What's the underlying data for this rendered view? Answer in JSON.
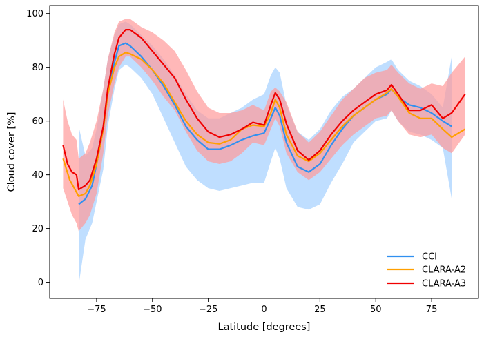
{
  "chart_data": {
    "type": "line",
    "title": "",
    "xlabel": "Latitude [degrees]",
    "ylabel": "Cloud cover [%]",
    "xlim": [
      -96,
      96
    ],
    "ylim": [
      -6,
      103
    ],
    "xticks": [
      -75,
      -50,
      -25,
      0,
      25,
      50,
      75
    ],
    "xtick_labels": [
      "−75",
      "−50",
      "−25",
      "0",
      "25",
      "50",
      "75"
    ],
    "yticks": [
      0,
      20,
      40,
      60,
      80,
      100
    ],
    "ytick_labels": [
      "0",
      "20",
      "40",
      "60",
      "80",
      "100"
    ],
    "grid": false,
    "legend_position": "lower-right",
    "series": [
      {
        "name": "CCI",
        "color": "#3090f0",
        "band_color": "#bfdeff",
        "x": [
          -83,
          -80,
          -77,
          -75,
          -72,
          -70,
          -67,
          -65,
          -62,
          -60,
          -55,
          -50,
          -45,
          -40,
          -35,
          -30,
          -25,
          -20,
          -15,
          -10,
          -5,
          0,
          3,
          5,
          7,
          10,
          15,
          20,
          25,
          30,
          35,
          40,
          45,
          50,
          55,
          57,
          60,
          65,
          70,
          75,
          80,
          84
        ],
        "values": [
          29,
          31,
          36,
          44,
          57,
          70,
          82,
          88,
          89,
          88,
          84,
          79,
          73,
          66,
          58,
          53,
          49.5,
          49.5,
          51,
          53,
          54.5,
          55.5,
          61,
          65,
          62,
          52,
          43,
          41,
          44,
          51,
          57,
          62,
          65,
          68,
          70,
          72,
          69,
          66,
          65,
          63,
          60,
          58
        ],
        "lower": [
          -1,
          16,
          22,
          30,
          42,
          58,
          72,
          79,
          81,
          80,
          76,
          70,
          61,
          52,
          43,
          38,
          35,
          34,
          35,
          36,
          37,
          37,
          45,
          50,
          46,
          35,
          28,
          27,
          29,
          37,
          44,
          52,
          56,
          60,
          61,
          64,
          60,
          56,
          55,
          53,
          50,
          31
        ],
        "upper": [
          58,
          47,
          50,
          57,
          72,
          83,
          92,
          96,
          97,
          96,
          92,
          88,
          83,
          77,
          70,
          64,
          61,
          61,
          63,
          65,
          68,
          70,
          77,
          80,
          78,
          66,
          56,
          53,
          57,
          64,
          69,
          72,
          76,
          80,
          82,
          83,
          79,
          75,
          73,
          70,
          65,
          84
        ]
      },
      {
        "name": "CLARA-A2",
        "color": "#ff9f00",
        "x": [
          -90,
          -87,
          -85,
          -83,
          -80,
          -78,
          -75,
          -72,
          -70,
          -67,
          -65,
          -62,
          -60,
          -55,
          -50,
          -45,
          -40,
          -35,
          -30,
          -25,
          -20,
          -15,
          -10,
          -5,
          0,
          3,
          5,
          7,
          10,
          15,
          20,
          25,
          30,
          35,
          40,
          45,
          50,
          55,
          57,
          60,
          65,
          70,
          75,
          80,
          84,
          90
        ],
        "values": [
          46,
          38,
          35,
          32,
          33,
          36,
          44,
          57,
          70,
          80,
          84,
          85.5,
          85,
          83,
          79,
          74,
          67,
          60,
          55,
          52,
          51.5,
          53,
          57,
          58.5,
          58,
          63,
          68,
          65,
          55,
          47,
          45,
          48,
          53,
          58,
          62,
          65,
          68,
          70.5,
          72,
          69,
          63,
          61,
          61,
          57,
          54,
          57
        ]
      },
      {
        "name": "CLARA-A3",
        "color": "#f00000",
        "band_color": "#ff9a9a",
        "x": [
          -90,
          -88,
          -86,
          -84,
          -83,
          -80,
          -78,
          -75,
          -72,
          -70,
          -67,
          -65,
          -62,
          -60,
          -55,
          -50,
          -45,
          -40,
          -35,
          -30,
          -25,
          -20,
          -15,
          -10,
          -5,
          0,
          3,
          5,
          7,
          10,
          15,
          20,
          25,
          30,
          35,
          40,
          45,
          50,
          55,
          57,
          60,
          65,
          70,
          75,
          80,
          84,
          90
        ],
        "values": [
          51,
          44,
          41,
          40,
          34.5,
          36,
          38,
          46,
          58,
          72,
          85,
          91,
          94,
          94,
          91,
          86,
          81,
          76,
          68,
          61,
          56,
          54,
          55,
          57,
          59.5,
          58.5,
          66,
          70.5,
          68,
          59,
          49,
          45.5,
          49,
          55,
          60,
          64,
          67,
          70,
          71.5,
          73.5,
          70,
          64,
          64,
          66,
          61,
          63,
          70
        ],
        "lower": [
          35,
          30,
          25,
          22,
          19,
          22,
          25,
          33,
          48,
          62,
          74,
          80,
          84,
          84,
          80,
          75,
          69,
          64,
          56,
          49,
          45,
          44,
          45,
          48,
          52,
          51,
          57,
          61,
          58,
          48,
          41,
          38,
          41,
          46,
          51,
          55,
          58,
          61,
          62,
          64,
          60,
          55,
          54,
          55,
          50,
          48,
          55
        ],
        "upper": [
          68,
          60,
          55,
          53,
          46,
          48,
          52,
          60,
          72,
          83,
          93,
          97,
          98,
          98,
          95,
          93,
          90,
          86,
          79,
          71,
          65,
          63,
          63,
          64,
          66,
          64,
          71,
          72.5,
          71,
          67,
          56,
          52,
          56,
          62,
          68,
          72,
          76,
          78,
          79,
          81,
          78,
          74,
          72,
          74,
          73,
          78,
          84
        ]
      }
    ]
  }
}
